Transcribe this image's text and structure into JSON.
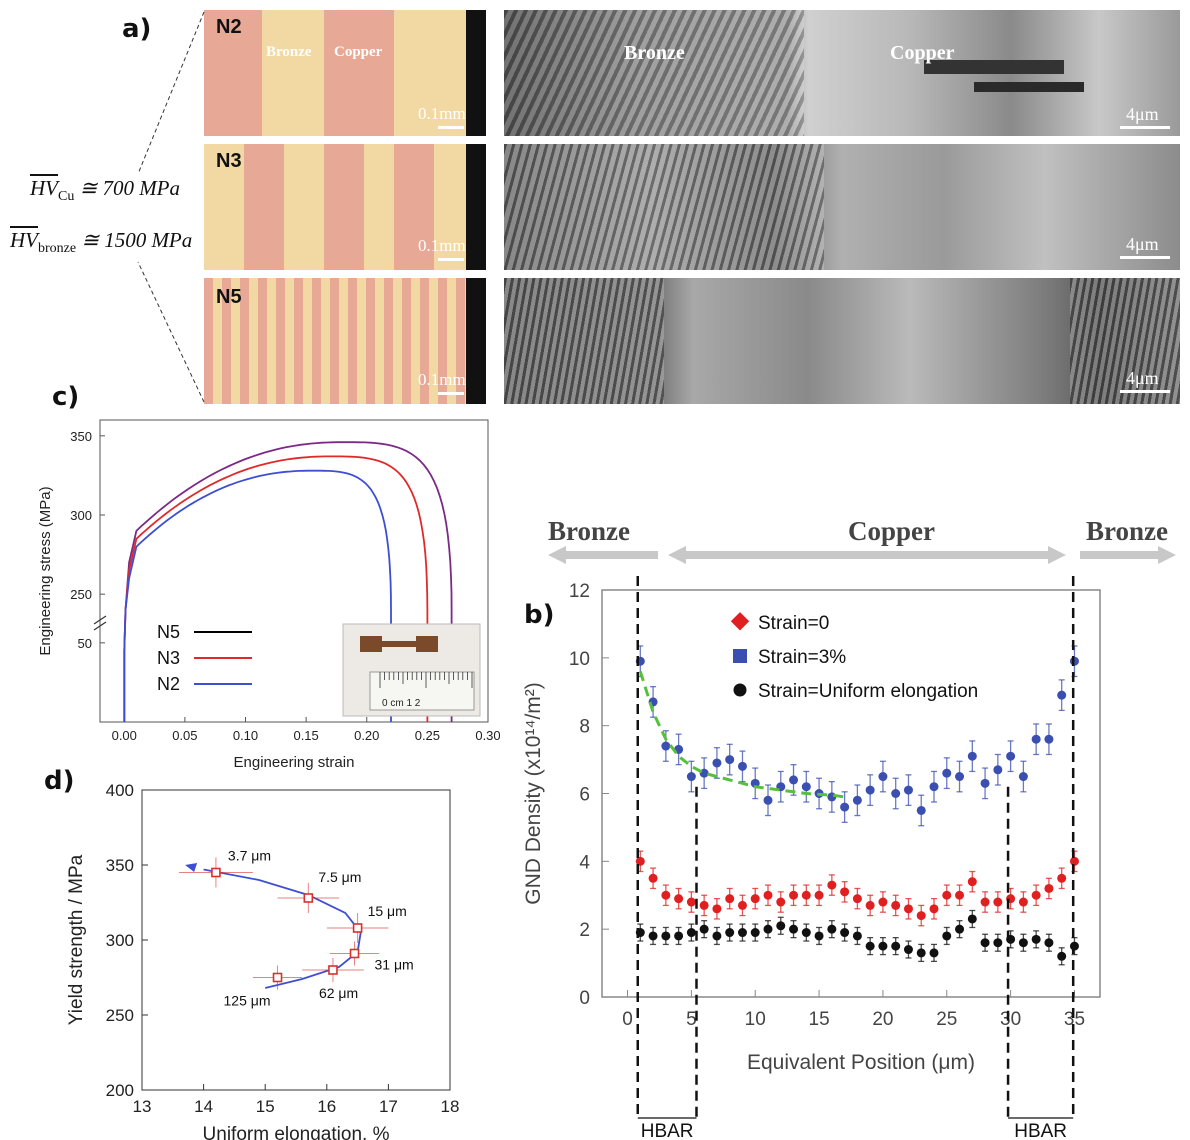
{
  "panel_a": {
    "label": "a)",
    "samples": [
      {
        "name": "N2",
        "scale": "0.1mm",
        "phase_left": "Bronze",
        "phase_right": "Copper"
      },
      {
        "name": "N3",
        "scale": "0.1mm"
      },
      {
        "name": "N5",
        "scale": "0.1mm"
      }
    ],
    "sem": [
      {
        "scale": "4μm",
        "phase_left": "Bronze",
        "phase_right": "Copper"
      },
      {
        "scale": "4μm"
      },
      {
        "scale": "4μm"
      }
    ],
    "hv_cu": "HV",
    "hv_cu_sub": "Cu",
    "hv_cu_value": "≅ 700 MPa",
    "hv_bronze": "HV",
    "hv_bronze_sub": "bronze",
    "hv_bronze_value": "≅ 1500 MPa"
  },
  "panel_b": {
    "label": "b)",
    "header_left": "Bronze",
    "header_mid": "Copper",
    "header_right": "Bronze",
    "hbar_left": "HBAR",
    "hbar_right": "HBAR",
    "colors": {
      "strain0": "#e02020",
      "strain3": "#3a4fb0",
      "uniform": "#111111",
      "fit": "#55c03a"
    },
    "chart_data": {
      "type": "scatter",
      "xlabel": "Equivalent Position (μm)",
      "ylabel": "GND Density (x10¹⁴/m²)",
      "xlim": [
        -2,
        37
      ],
      "ylim": [
        0,
        12
      ],
      "xticks": [
        "0",
        "5",
        "10",
        "15",
        "20",
        "25",
        "30",
        "35"
      ],
      "yticks": [
        "0",
        "2",
        "4",
        "6",
        "8",
        "10",
        "12"
      ],
      "legend": [
        "Strain=0",
        "Strain=3%",
        "Strain=Uniform elongation"
      ],
      "x": [
        1,
        2,
        3,
        4,
        5,
        6,
        7,
        8,
        9,
        10,
        11,
        12,
        13,
        14,
        15,
        16,
        17,
        18,
        19,
        20,
        21,
        22,
        23,
        24,
        25,
        26,
        27,
        28,
        29,
        30,
        31,
        32,
        33,
        34,
        35
      ],
      "series": [
        {
          "name": "Strain=0",
          "values": [
            4.0,
            3.5,
            3.0,
            2.9,
            2.8,
            2.7,
            2.6,
            2.9,
            2.7,
            2.9,
            3.0,
            2.8,
            3.0,
            3.0,
            3.0,
            3.3,
            3.1,
            2.9,
            2.7,
            2.8,
            2.7,
            2.6,
            2.4,
            2.6,
            3.0,
            3.0,
            3.4,
            2.8,
            2.8,
            2.9,
            2.8,
            3.0,
            3.2,
            3.5,
            4.0
          ],
          "err": 0.6
        },
        {
          "name": "Strain=3%",
          "values": [
            9.9,
            8.7,
            7.4,
            7.3,
            6.5,
            6.6,
            6.9,
            7.0,
            6.8,
            6.3,
            5.8,
            6.2,
            6.4,
            6.2,
            6.0,
            5.9,
            5.6,
            5.8,
            6.1,
            6.5,
            6.0,
            6.1,
            5.5,
            6.2,
            6.6,
            6.5,
            7.1,
            6.3,
            6.7,
            7.1,
            6.5,
            7.6,
            7.6,
            8.9,
            9.9
          ],
          "err": 0.9
        },
        {
          "name": "Strain=Uniform elongation",
          "values": [
            1.9,
            1.8,
            1.8,
            1.8,
            1.9,
            2.0,
            1.8,
            1.9,
            1.9,
            1.9,
            2.0,
            2.1,
            2.0,
            1.9,
            1.8,
            2.0,
            1.9,
            1.8,
            1.5,
            1.5,
            1.5,
            1.4,
            1.3,
            1.3,
            1.8,
            2.0,
            2.3,
            1.6,
            1.6,
            1.7,
            1.6,
            1.7,
            1.6,
            1.2,
            1.5
          ],
          "err": 0.5
        }
      ],
      "fit": {
        "x": [
          1,
          2,
          3,
          4,
          5,
          6,
          7,
          8,
          10,
          12,
          14,
          16,
          17
        ],
        "y": [
          9.6,
          8.4,
          7.6,
          7.1,
          6.8,
          6.6,
          6.5,
          6.4,
          6.2,
          6.1,
          6.0,
          5.95,
          5.9
        ]
      }
    }
  },
  "panel_c": {
    "label": "c)",
    "colors": {
      "N5": "#7b2a85",
      "N3": "#e02a2a",
      "N2": "#3d4fd0",
      "legend_N5": "#000000"
    },
    "chart_data": {
      "type": "line",
      "xlabel": "Engineering strain",
      "ylabel": "Engineering stress (MPa)",
      "xlim": [
        -0.02,
        0.3
      ],
      "xticks": [
        "0.00",
        "0.05",
        "0.10",
        "0.15",
        "0.20",
        "0.25",
        "0.30"
      ],
      "yticks": [
        "50",
        "250",
        "300",
        "350"
      ],
      "legend": [
        "N5",
        "N3",
        "N2"
      ],
      "series": [
        {
          "name": "N5",
          "yield": 290,
          "uts": 346,
          "strain_at_uts": 0.18,
          "fracture_strain": 0.27
        },
        {
          "name": "N3",
          "yield": 285,
          "uts": 337,
          "strain_at_uts": 0.17,
          "fracture_strain": 0.25
        },
        {
          "name": "N2",
          "yield": 280,
          "uts": 328,
          "strain_at_uts": 0.155,
          "fracture_strain": 0.22
        }
      ],
      "inset_ruler": "0 cm 1 2"
    }
  },
  "panel_d": {
    "label": "d)",
    "colors": {
      "points": "#d83030",
      "curve": "#3d4fd0"
    },
    "chart_data": {
      "type": "scatter",
      "xlabel": "Uniform elongation, %",
      "ylabel": "Yield strength / MPa",
      "xlim": [
        13,
        18
      ],
      "ylim": [
        200,
        400
      ],
      "xticks": [
        "13",
        "14",
        "15",
        "16",
        "17",
        "18"
      ],
      "yticks": [
        "200",
        "250",
        "300",
        "350",
        "400"
      ],
      "points": [
        {
          "label": "3.7 μm",
          "x": 14.2,
          "y": 345,
          "xerr": 0.6,
          "yerr": 10
        },
        {
          "label": "7.5 μm",
          "x": 15.7,
          "y": 328,
          "xerr": 0.5,
          "yerr": 10
        },
        {
          "label": "15 μm",
          "x": 16.5,
          "y": 308,
          "xerr": 0.5,
          "yerr": 10
        },
        {
          "label": "31 μm",
          "x": 16.45,
          "y": 291,
          "xerr": 0.4,
          "yerr": 8
        },
        {
          "label": "62 μm",
          "x": 16.1,
          "y": 280,
          "xerr": 0.5,
          "yerr": 8
        },
        {
          "label": "125 μm",
          "x": 15.2,
          "y": 275,
          "xerr": 0.4,
          "yerr": 8
        }
      ]
    }
  }
}
